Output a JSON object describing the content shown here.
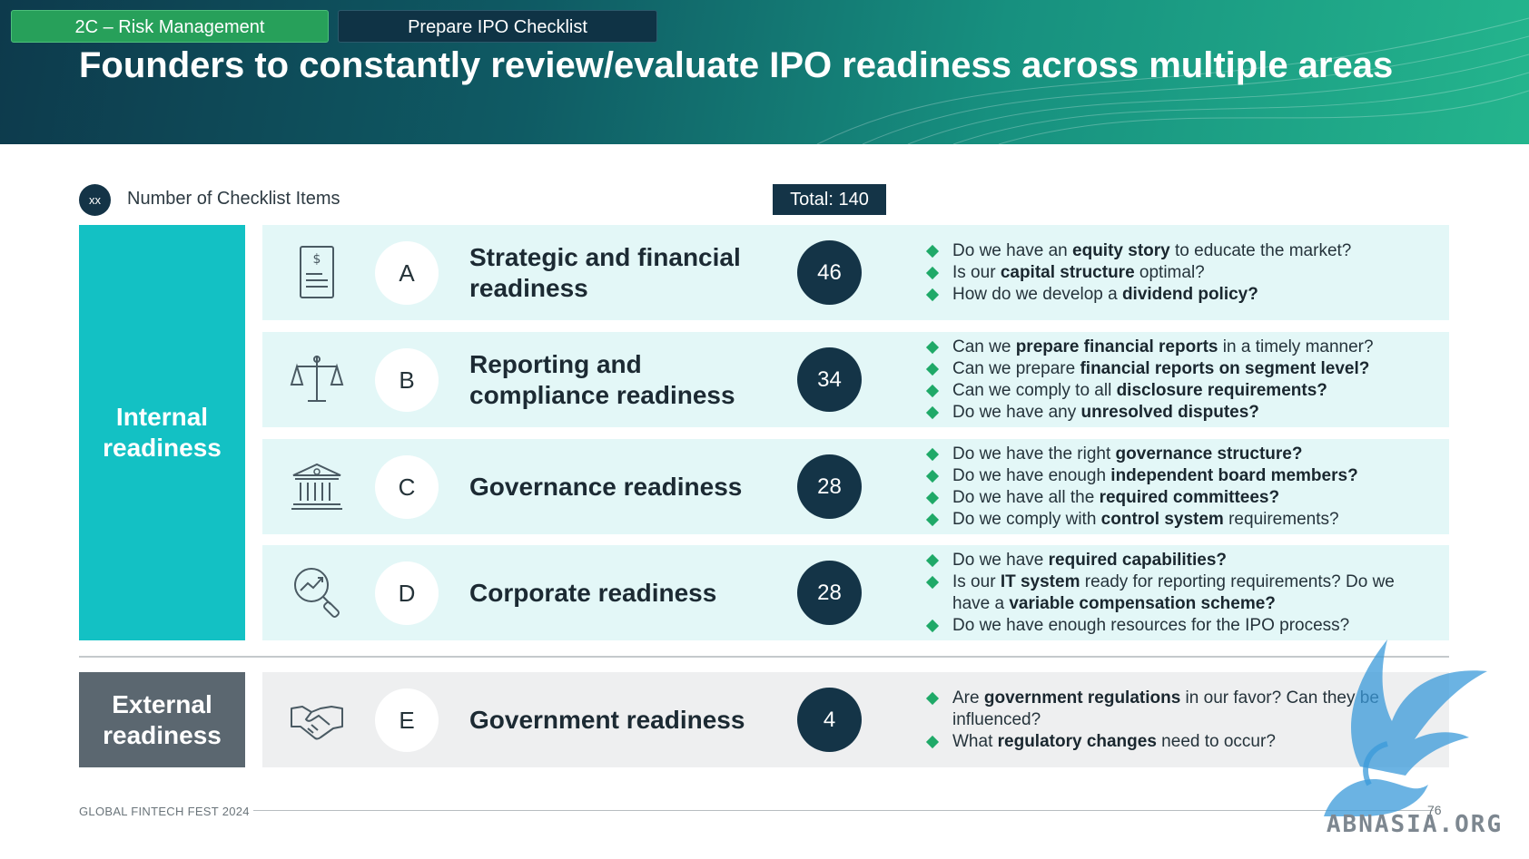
{
  "header": {
    "tab_risk": "2C – Risk Management",
    "tab_ipo": "Prepare IPO Checklist",
    "title": "Founders to constantly review/evaluate IPO readiness across multiple areas"
  },
  "legend": {
    "circle_text": "xx",
    "label": "Number of Checklist Items",
    "total": "Total: 140"
  },
  "groups": {
    "internal": "Internal readiness",
    "external": "External readiness"
  },
  "rows": [
    {
      "letter": "A",
      "name": "Strategic and financial readiness",
      "count": "46",
      "icon": "financial-document-icon",
      "bullets": [
        {
          "pre": "Do we have an ",
          "bold": "equity story",
          "post": " to educate the market?"
        },
        {
          "pre": "Is our ",
          "bold": "capital structure",
          "post": " optimal?"
        },
        {
          "pre": "How do we develop a ",
          "bold": "dividend policy?",
          "post": ""
        }
      ]
    },
    {
      "letter": "B",
      "name": "Reporting and compliance readiness",
      "count": "34",
      "icon": "scales-icon",
      "bullets": [
        {
          "pre": "Can we ",
          "bold": "prepare financial reports",
          "post": " in a timely manner?"
        },
        {
          "pre": "Can we prepare ",
          "bold": "financial reports on segment level?",
          "post": ""
        },
        {
          "pre": "Can we comply to all ",
          "bold": "disclosure requirements?",
          "post": ""
        },
        {
          "pre": "Do we have any ",
          "bold": "unresolved disputes?",
          "post": ""
        }
      ]
    },
    {
      "letter": "C",
      "name": "Governance readiness",
      "count": "28",
      "icon": "government-building-icon",
      "bullets": [
        {
          "pre": "Do we have the right ",
          "bold": "governance structure?",
          "post": ""
        },
        {
          "pre": "Do we have enough ",
          "bold": "independent board members?",
          "post": ""
        },
        {
          "pre": "Do we have all the ",
          "bold": "required committees?",
          "post": ""
        },
        {
          "pre": "Do we comply with ",
          "bold": "control system",
          "post": " requirements?"
        }
      ]
    },
    {
      "letter": "D",
      "name": "Corporate readiness",
      "count": "28",
      "icon": "magnifier-chart-icon",
      "bullets": [
        {
          "pre": "Do we have ",
          "bold": "required capabilities?",
          "post": ""
        },
        {
          "pre": "Is our ",
          "bold": "IT system",
          "post": " ready for reporting requirements? Do we have a ",
          "bold2": "variable compensation scheme?"
        },
        {
          "pre": "Do we have enough resources for the IPO process?",
          "bold": "",
          "post": ""
        }
      ]
    },
    {
      "letter": "E",
      "name": "Government readiness",
      "count": "4",
      "icon": "handshake-icon",
      "bullets": [
        {
          "pre": "Are ",
          "bold": "government regulations",
          "post": " in our favor? Can they be influenced?"
        },
        {
          "pre": "What ",
          "bold": "regulatory changes",
          "post": " need to occur?"
        }
      ]
    }
  ],
  "footer": {
    "event": "GLOBAL FINTECH FEST 2024",
    "page": "76",
    "watermark": "ABNASIA.ORG"
  },
  "colors": {
    "internal_bar": "#13c1c4",
    "external_bar": "#5b6770",
    "circle": "#143447",
    "bullet": "#1fa968"
  }
}
